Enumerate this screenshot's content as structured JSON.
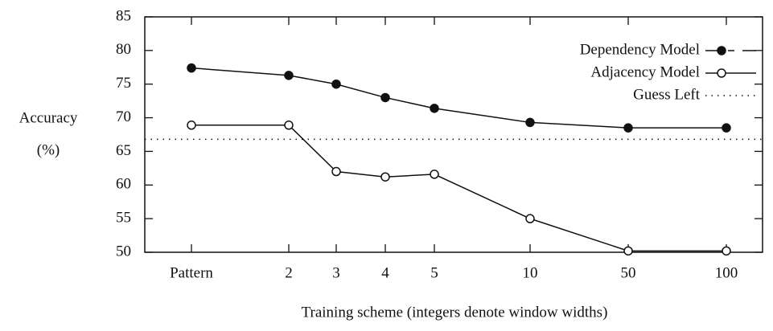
{
  "chart_data": {
    "type": "line",
    "xlabel": "Training scheme (integers denote window widths)",
    "ylabel": [
      "Accuracy",
      "(%)"
    ],
    "categories": [
      "Pattern",
      "2",
      "3",
      "4",
      "5",
      "10",
      "50",
      "100"
    ],
    "series": [
      {
        "name": "Dependency Model",
        "color": "#111111",
        "marker": "filled",
        "values": [
          77.4,
          76.3,
          75.0,
          73.0,
          71.4,
          69.3,
          68.5,
          68.5
        ]
      },
      {
        "name": "Adjacency Model",
        "color": "#111111",
        "marker": "open",
        "values": [
          68.9,
          68.9,
          62.0,
          61.2,
          61.6,
          55.0,
          50.2,
          50.2
        ]
      }
    ],
    "reference_lines": [
      {
        "name": "Guess Left",
        "value": 66.8,
        "style": "dotted",
        "color": "#111111"
      }
    ],
    "ylim": [
      50,
      85
    ],
    "yticks": [
      50,
      55,
      60,
      65,
      70,
      75,
      80,
      85
    ],
    "legend": "upper right"
  }
}
